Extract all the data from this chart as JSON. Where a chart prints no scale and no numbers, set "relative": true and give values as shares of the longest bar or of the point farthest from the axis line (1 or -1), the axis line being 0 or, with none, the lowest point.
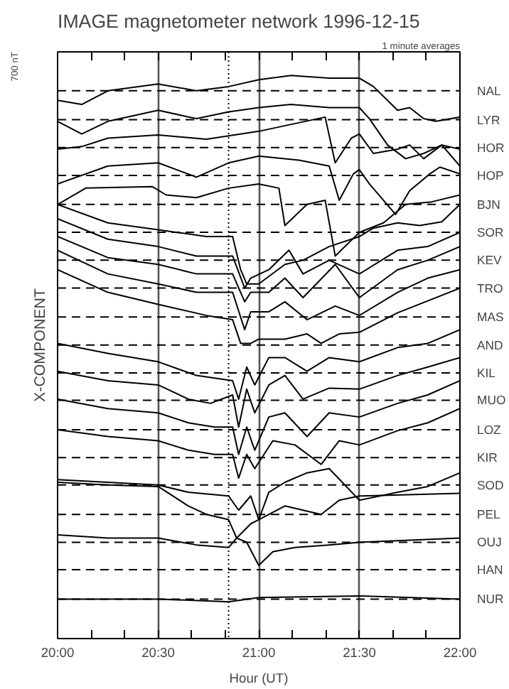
{
  "chart_data": {
    "type": "line",
    "relative": true,
    "title": "IMAGE magnetometer network 1996-12-15",
    "xlabel": "Hour (UT)",
    "ylabel": "X-COMPONENT",
    "annotations": [
      "1 minute averages",
      "700 nT"
    ],
    "xlim": [
      20.0,
      22.0
    ],
    "xticks": [
      {
        "value": 20.0,
        "label": "20:00"
      },
      {
        "value": 20.1667,
        "label": null
      },
      {
        "value": 20.3333,
        "label": null
      },
      {
        "value": 20.5,
        "label": "20:30"
      },
      {
        "value": 20.6667,
        "label": null
      },
      {
        "value": 20.8333,
        "label": null
      },
      {
        "value": 21.0,
        "label": "21:00"
      },
      {
        "value": 21.1667,
        "label": null
      },
      {
        "value": 21.3333,
        "label": null
      },
      {
        "value": 21.5,
        "label": "21:30"
      },
      {
        "value": 21.6667,
        "label": null
      },
      {
        "value": 21.8333,
        "label": null
      },
      {
        "value": 22.0,
        "label": "22:00"
      }
    ],
    "grid": "x",
    "line_style": "solid",
    "marker": "none",
    "series": [
      {
        "color": "#000000",
        "x": [
          20.0,
          20.12,
          20.25,
          20.5,
          20.69,
          20.85,
          21.0,
          21.16,
          21.35,
          21.5,
          21.57,
          21.69,
          21.75,
          21.82,
          21.88,
          22.0
        ],
        "values": [
          0.953,
          0.945,
          0.971,
          0.984,
          0.971,
          0.979,
          0.992,
          1.0,
          0.995,
          0.995,
          0.979,
          0.934,
          0.939,
          0.918,
          0.913,
          0.921
        ]
      },
      {
        "color": "#000000",
        "x": [
          20.0,
          20.12,
          20.25,
          20.5,
          20.69,
          20.85,
          21.0,
          21.16,
          21.35,
          21.5,
          21.55,
          21.64,
          21.73,
          21.82,
          21.91,
          22.0
        ],
        "values": [
          0.913,
          0.889,
          0.913,
          0.934,
          0.918,
          0.931,
          0.939,
          0.945,
          0.939,
          0.939,
          0.918,
          0.868,
          0.842,
          0.852,
          0.868,
          0.828
        ]
      },
      {
        "color": "#000000",
        "x": [
          20.0,
          20.12,
          20.25,
          20.5,
          20.74,
          21.0,
          21.33,
          21.38,
          21.46,
          21.5,
          21.57,
          21.69,
          21.75,
          21.82,
          21.91,
          22.0
        ],
        "values": [
          0.86,
          0.865,
          0.881,
          0.887,
          0.879,
          0.894,
          0.921,
          0.834,
          0.881,
          0.889,
          0.852,
          0.86,
          0.868,
          0.842,
          0.868,
          0.86
        ]
      },
      {
        "color": "#000000",
        "x": [
          20.0,
          20.25,
          20.5,
          20.69,
          20.85,
          21.0,
          21.2,
          21.35,
          21.4,
          21.47,
          21.5,
          21.55,
          21.68,
          21.75,
          21.85,
          21.9,
          22.0
        ],
        "values": [
          0.794,
          0.828,
          0.834,
          0.807,
          0.834,
          0.847,
          0.839,
          0.828,
          0.763,
          0.813,
          0.821,
          0.794,
          0.736,
          0.781,
          0.813,
          0.826,
          0.813
        ]
      },
      {
        "color": "#000000",
        "x": [
          20.0,
          20.14,
          20.47,
          20.54,
          20.69,
          20.85,
          21.0,
          21.1,
          21.13,
          21.24,
          21.33,
          21.38,
          21.5,
          21.62,
          21.73,
          21.86,
          22.0
        ],
        "values": [
          0.755,
          0.786,
          0.789,
          0.773,
          0.768,
          0.786,
          0.794,
          0.786,
          0.715,
          0.755,
          0.763,
          0.657,
          0.702,
          0.72,
          0.755,
          0.76,
          0.773
        ]
      },
      {
        "color": "#000000",
        "x": [
          20.0,
          20.25,
          20.5,
          20.74,
          20.87,
          20.91,
          20.94,
          21.0,
          21.13,
          21.22,
          21.35,
          21.5,
          21.57,
          21.69,
          21.8,
          21.91,
          22.0
        ],
        "values": [
          0.755,
          0.72,
          0.707,
          0.694,
          0.694,
          0.631,
          0.604,
          0.604,
          0.641,
          0.649,
          0.675,
          0.694,
          0.71,
          0.72,
          0.715,
          0.722,
          0.755
        ]
      },
      {
        "color": "#000000",
        "x": [
          20.0,
          20.25,
          20.5,
          20.69,
          20.87,
          20.93,
          20.96,
          21.05,
          21.15,
          21.22,
          21.35,
          21.5,
          21.69,
          21.84,
          22.0
        ],
        "values": [
          0.728,
          0.689,
          0.675,
          0.657,
          0.657,
          0.596,
          0.615,
          0.631,
          0.668,
          0.623,
          0.649,
          0.623,
          0.668,
          0.675,
          0.702
        ]
      },
      {
        "color": "#000000",
        "x": [
          20.0,
          20.25,
          20.5,
          20.69,
          20.87,
          20.93,
          20.96,
          21.05,
          21.13,
          21.22,
          21.38,
          21.5,
          21.69,
          21.84,
          22.0
        ],
        "values": [
          0.694,
          0.654,
          0.641,
          0.623,
          0.623,
          0.57,
          0.588,
          0.588,
          0.615,
          0.578,
          0.641,
          0.578,
          0.631,
          0.649,
          0.675
        ]
      },
      {
        "color": "#000000",
        "x": [
          20.0,
          20.25,
          20.5,
          20.69,
          20.87,
          20.93,
          20.96,
          21.05,
          21.13,
          21.24,
          21.38,
          21.5,
          21.69,
          21.84,
          22.0
        ],
        "values": [
          0.668,
          0.623,
          0.604,
          0.588,
          0.588,
          0.517,
          0.551,
          0.551,
          0.57,
          0.536,
          0.562,
          0.544,
          0.588,
          0.615,
          0.631
        ]
      },
      {
        "color": "#000000",
        "x": [
          20.0,
          20.25,
          20.5,
          20.74,
          20.87,
          20.91,
          20.96,
          21.0,
          21.13,
          21.24,
          21.31,
          21.4,
          21.5,
          21.69,
          22.0
        ],
        "values": [
          0.631,
          0.588,
          0.565,
          0.544,
          0.536,
          0.491,
          0.491,
          0.499,
          0.499,
          0.509,
          0.491,
          0.509,
          0.512,
          0.549,
          0.596
        ]
      },
      {
        "color": "#000000",
        "x": [
          20.0,
          20.25,
          20.5,
          20.69,
          20.87,
          20.9,
          20.94,
          20.98,
          21.05,
          21.13,
          21.24,
          21.35,
          21.5,
          21.69,
          21.84,
          22.0
        ],
        "values": [
          0.491,
          0.472,
          0.456,
          0.43,
          0.42,
          0.385,
          0.446,
          0.412,
          0.464,
          0.464,
          0.438,
          0.464,
          0.456,
          0.483,
          0.491,
          0.517
        ]
      },
      {
        "color": "#000000",
        "x": [
          20.0,
          20.25,
          20.5,
          20.65,
          20.76,
          20.87,
          20.9,
          20.94,
          20.98,
          21.05,
          21.13,
          21.22,
          21.35,
          21.5,
          21.69,
          21.84,
          22.0
        ],
        "values": [
          0.438,
          0.42,
          0.412,
          0.385,
          0.377,
          0.393,
          0.332,
          0.404,
          0.359,
          0.412,
          0.43,
          0.385,
          0.406,
          0.404,
          0.43,
          0.446,
          0.464
        ]
      },
      {
        "color": "#000000",
        "x": [
          20.0,
          20.25,
          20.5,
          20.65,
          20.78,
          20.87,
          20.9,
          20.94,
          20.98,
          21.05,
          21.13,
          21.24,
          21.35,
          21.5,
          21.69,
          21.84,
          22.0
        ],
        "values": [
          0.385,
          0.367,
          0.359,
          0.34,
          0.332,
          0.332,
          0.28,
          0.332,
          0.288,
          0.351,
          0.359,
          0.314,
          0.359,
          0.351,
          0.377,
          0.393,
          0.42
        ]
      },
      {
        "color": "#000000",
        "x": [
          20.0,
          20.25,
          20.5,
          20.65,
          20.78,
          20.87,
          20.9,
          20.94,
          20.98,
          21.07,
          21.18,
          21.31,
          21.4,
          21.5,
          21.69,
          21.84,
          22.0
        ],
        "values": [
          0.327,
          0.314,
          0.306,
          0.288,
          0.28,
          0.28,
          0.235,
          0.28,
          0.253,
          0.306,
          0.298,
          0.261,
          0.306,
          0.298,
          0.325,
          0.34,
          0.367
        ]
      },
      {
        "color": "#000000",
        "x": [
          20.0,
          20.5,
          20.65,
          20.85,
          20.9,
          20.96,
          21.0,
          21.05,
          21.13,
          21.24,
          21.35,
          21.5,
          21.69,
          21.84,
          22.0
        ],
        "values": [
          0.232,
          0.222,
          0.208,
          0.201,
          0.174,
          0.201,
          0.156,
          0.208,
          0.227,
          0.245,
          0.253,
          0.193,
          0.208,
          0.219,
          0.245
        ]
      },
      {
        "color": "#000000",
        "x": [
          20.0,
          20.25,
          20.5,
          20.65,
          20.74,
          20.85,
          20.89,
          20.96,
          21.0,
          21.13,
          21.22,
          21.31,
          21.4,
          21.5,
          22.0
        ],
        "values": [
          0.227,
          0.222,
          0.219,
          0.182,
          0.166,
          0.156,
          0.121,
          0.148,
          0.156,
          0.182,
          0.174,
          0.166,
          0.193,
          0.201,
          0.206
        ]
      },
      {
        "color": "#000000",
        "x": [
          20.0,
          20.25,
          20.5,
          20.69,
          20.85,
          20.89,
          20.94,
          21.0,
          21.07,
          21.18,
          21.35,
          21.5,
          21.69,
          22.0
        ],
        "values": [
          0.127,
          0.121,
          0.121,
          0.108,
          0.103,
          0.121,
          0.113,
          0.069,
          0.095,
          0.103,
          0.108,
          0.113,
          0.116,
          0.121
        ]
      },
      {
        "color": "#000000",
        "x": [
          20.0,
          20.5,
          20.85,
          21.0,
          21.5,
          22.0
        ],
        "values": [
          0.005,
          0.005,
          0.0,
          0.008,
          0.011,
          0.005
        ]
      }
    ],
    "ref_lines": [
      {
        "axis": "y",
        "value": 0.971,
        "label": "NAL",
        "line_style": "dashed",
        "color": "#000000"
      },
      {
        "axis": "y",
        "value": 0.916,
        "label": "LYR",
        "line_style": "dashed",
        "color": "#000000"
      },
      {
        "axis": "y",
        "value": 0.863,
        "label": "HOR",
        "line_style": "dashed",
        "color": "#000000"
      },
      {
        "axis": "y",
        "value": 0.81,
        "label": "HOP",
        "line_style": "dashed",
        "color": "#000000"
      },
      {
        "axis": "y",
        "value": 0.755,
        "label": "BJN",
        "line_style": "dashed",
        "color": "#000000"
      },
      {
        "axis": "y",
        "value": 0.702,
        "label": "SOR",
        "line_style": "dashed",
        "color": "#000000"
      },
      {
        "axis": "y",
        "value": 0.649,
        "label": "KEV",
        "line_style": "dashed",
        "color": "#000000"
      },
      {
        "axis": "y",
        "value": 0.596,
        "label": "TRO",
        "line_style": "dashed",
        "color": "#000000"
      },
      {
        "axis": "y",
        "value": 0.541,
        "label": "MAS",
        "line_style": "dashed",
        "color": "#000000"
      },
      {
        "axis": "y",
        "value": 0.488,
        "label": "AND",
        "line_style": "dashed",
        "color": "#000000"
      },
      {
        "axis": "y",
        "value": 0.435,
        "label": "KIL",
        "line_style": "dashed",
        "color": "#000000"
      },
      {
        "axis": "y",
        "value": 0.383,
        "label": "MUO",
        "line_style": "dashed",
        "color": "#000000"
      },
      {
        "axis": "y",
        "value": 0.327,
        "label": "LOZ",
        "line_style": "dashed",
        "color": "#000000"
      },
      {
        "axis": "y",
        "value": 0.274,
        "label": "KIR",
        "line_style": "dashed",
        "color": "#000000"
      },
      {
        "axis": "y",
        "value": 0.222,
        "label": "SOD",
        "line_style": "dashed",
        "color": "#000000"
      },
      {
        "axis": "y",
        "value": 0.166,
        "label": "PEL",
        "line_style": "dashed",
        "color": "#000000"
      },
      {
        "axis": "y",
        "value": 0.113,
        "label": "OUJ",
        "line_style": "dashed",
        "color": "#000000"
      },
      {
        "axis": "y",
        "value": 0.061,
        "label": "HAN",
        "line_style": "dashed",
        "color": "#000000"
      },
      {
        "axis": "y",
        "value": 0.005,
        "label": "NUR",
        "line_style": "dashed",
        "color": "#000000"
      },
      {
        "axis": "x",
        "value": 20.85,
        "label": null,
        "line_style": "dotted",
        "color": "#000000"
      }
    ]
  }
}
